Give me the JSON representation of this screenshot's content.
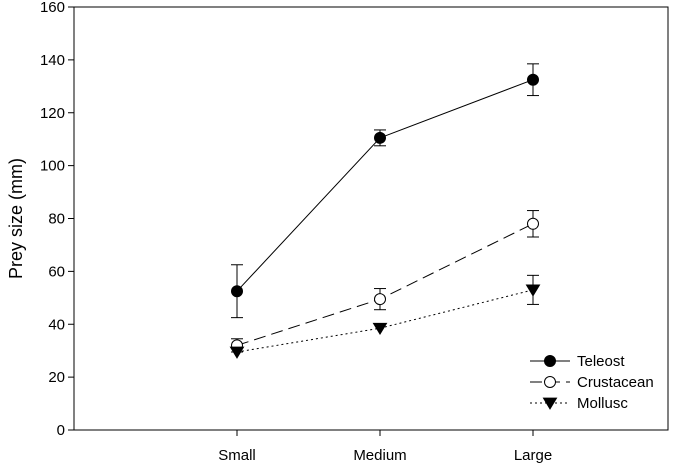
{
  "chart_data": {
    "type": "line",
    "title": "",
    "xlabel": "",
    "ylabel": "Prey size (mm)",
    "categories": [
      "Small",
      "Medium",
      "Large"
    ],
    "ylim": [
      0,
      160
    ],
    "yticks": [
      0,
      20,
      40,
      60,
      80,
      100,
      120,
      140,
      160
    ],
    "grid": false,
    "legend": "bottom-right",
    "series": [
      {
        "name": "Teleost",
        "values": [
          52.5,
          110.5,
          132.5
        ],
        "errors": [
          10.0,
          3.0,
          6.0
        ],
        "marker": "filled-circle",
        "line": "solid",
        "color": "#000000"
      },
      {
        "name": "Crustacean",
        "values": [
          32.0,
          49.5,
          78.0
        ],
        "errors": [
          2.5,
          4.0,
          5.0
        ],
        "marker": "open-circle",
        "line": "dashed",
        "color": "#000000"
      },
      {
        "name": "Mollusc",
        "values": [
          29.5,
          38.5,
          53.0
        ],
        "errors": [
          0.0,
          0.0,
          5.5
        ],
        "marker": "filled-triangle-down",
        "line": "dotted",
        "color": "#000000"
      }
    ]
  }
}
